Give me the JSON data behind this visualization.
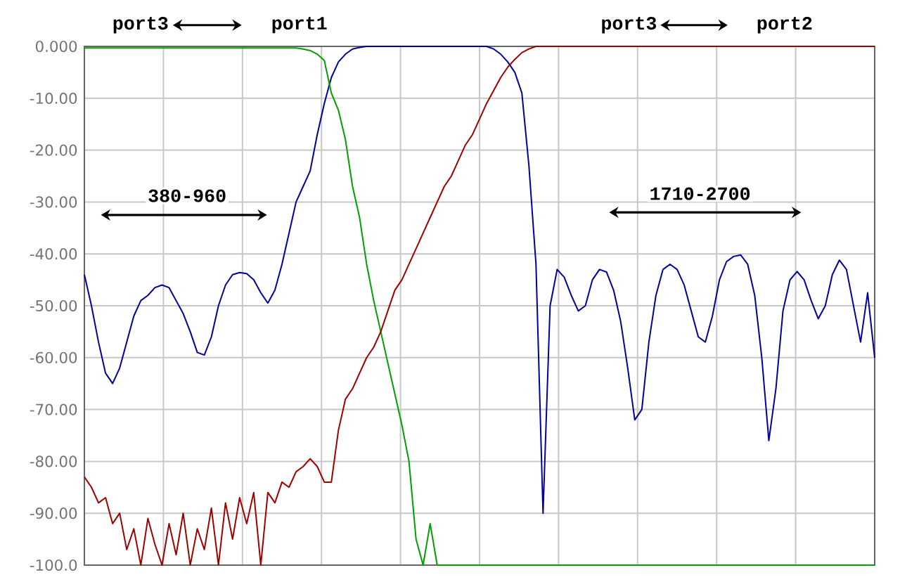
{
  "chart_data": {
    "type": "line",
    "categories": [
      null,
      null,
      null,
      null,
      null,
      null,
      null,
      null,
      null,
      null,
      null,
      null,
      null,
      null,
      null,
      null,
      null,
      null,
      null,
      null,
      null,
      null,
      null,
      null,
      null,
      null,
      null,
      null,
      null,
      null,
      null,
      null,
      null,
      null,
      null,
      null,
      null,
      null,
      null,
      null,
      null,
      null,
      null,
      null,
      null,
      null,
      null,
      null,
      null,
      null,
      null,
      null,
      null,
      null,
      null,
      null,
      null,
      null,
      null,
      null,
      null,
      null,
      null,
      null,
      null,
      null,
      null,
      null,
      null,
      null,
      null,
      null,
      null,
      null,
      null,
      null,
      null,
      null,
      null,
      null,
      null,
      null,
      null,
      null,
      null,
      null,
      null,
      null,
      null,
      null,
      null,
      null,
      null,
      null,
      null,
      null,
      null,
      null,
      null,
      null,
      null,
      null,
      null,
      null,
      null,
      null,
      null,
      null,
      null,
      null,
      null,
      null,
      null
    ],
    "series": [
      {
        "color": "#0000a0",
        "values": [
          -44,
          -50,
          -57,
          -63,
          -65,
          -62,
          -57,
          -52,
          -49,
          -48,
          -46.5,
          -46,
          -46.5,
          -49,
          -51.5,
          -55,
          -59,
          -59.5,
          -56,
          -50,
          -46,
          -44,
          -43.6,
          -43.8,
          -45,
          -47.5,
          -49.5,
          -47,
          -42,
          -36,
          -30,
          -27,
          -24,
          -17,
          -11,
          -6,
          -3,
          -1.5,
          -0.5,
          -0.2,
          0,
          0,
          0,
          0,
          0,
          0,
          0,
          0,
          0,
          0,
          0,
          0,
          0,
          0,
          0,
          0,
          0,
          0,
          -0.5,
          -1.5,
          -3,
          -5,
          -9,
          -23,
          -42,
          -90,
          -50,
          -43,
          -44.5,
          -48,
          -51,
          -50,
          -45,
          -43,
          -43.5,
          -47,
          -53,
          -62,
          -72,
          -70,
          -57,
          -48,
          -43,
          -42,
          -43,
          -46,
          -51,
          -56,
          -57,
          -52,
          -45,
          -41.5,
          -40.5,
          -40.2,
          -42,
          -48,
          -60,
          -76,
          -66,
          -51,
          -45,
          -43.4,
          -45,
          -49,
          -52.5,
          -50,
          -44,
          -41.2,
          -43,
          -50,
          -57,
          -47.5,
          -60
        ]
      },
      {
        "color": "#00a000",
        "values": [
          -0.3,
          -0.3,
          -0.3,
          -0.3,
          -0.3,
          -0.3,
          -0.3,
          -0.3,
          -0.3,
          -0.3,
          -0.3,
          -0.3,
          -0.3,
          -0.3,
          -0.3,
          -0.3,
          -0.3,
          -0.3,
          -0.3,
          -0.3,
          -0.3,
          -0.3,
          -0.3,
          -0.3,
          -0.3,
          -0.3,
          -0.3,
          -0.3,
          -0.3,
          -0.3,
          -0.3,
          -0.5,
          -0.8,
          -1.5,
          -2.7,
          -9,
          -12.3,
          -18,
          -27,
          -33,
          -42,
          -49,
          -55,
          -61,
          -67,
          -73,
          -80,
          -95,
          -100,
          -92,
          -100,
          -100,
          -100,
          -100,
          -100,
          -100,
          -100,
          -100,
          -100,
          -100,
          -100,
          -100,
          -100,
          -100,
          -100,
          -100,
          -100,
          -100,
          -100,
          -100,
          -100,
          -100,
          -100,
          -100,
          -100,
          -100,
          -100,
          -100,
          -100,
          -100,
          -100,
          -100,
          -100,
          -100,
          -100,
          -100,
          -100,
          -100,
          -100,
          -100,
          -100,
          -100,
          -100,
          -100,
          -100,
          -100,
          -100,
          -100,
          -100,
          -100,
          -100,
          -100,
          -100,
          -100,
          -100,
          -100,
          -100,
          -100,
          -100,
          -100,
          -100,
          -100,
          -100
        ]
      },
      {
        "color": "#a00000",
        "values": [
          -83,
          -85,
          -88,
          -87,
          -92,
          -90,
          -97,
          -93,
          -100,
          -91,
          -96,
          -100,
          -92,
          -98,
          -90,
          -100,
          -93,
          -97,
          -89,
          -100,
          -88,
          -95,
          -87,
          -92,
          -86,
          -100,
          -86,
          -88,
          -84,
          -85,
          -82,
          -81,
          -79.5,
          -81,
          -84,
          -84,
          -74,
          -68,
          -66,
          -63,
          -60,
          -58,
          -55,
          -51,
          -47,
          -45,
          -42,
          -39,
          -36,
          -33,
          -30,
          -27,
          -25,
          -22,
          -19,
          -17,
          -14,
          -11,
          -8.5,
          -6,
          -4,
          -2.5,
          -1.2,
          -0.5,
          0,
          0,
          0,
          0,
          0,
          0,
          0,
          0,
          0,
          0,
          0,
          0,
          0,
          0,
          0,
          0,
          0,
          0,
          0,
          0,
          0,
          0,
          0,
          0,
          0,
          0,
          0,
          0,
          0,
          0,
          0,
          0,
          0,
          0,
          0,
          0,
          0,
          0,
          0,
          0,
          0,
          0,
          0,
          0,
          0,
          0,
          0,
          0,
          0
        ]
      }
    ],
    "ylim": [
      -100,
      0
    ],
    "yticks": [
      {
        "value": 0,
        "label": "0.000"
      },
      {
        "value": -10,
        "label": "-10.00"
      },
      {
        "value": -20,
        "label": "-20.00"
      },
      {
        "value": -30,
        "label": "-30.00"
      },
      {
        "value": -40,
        "label": "-40.00"
      },
      {
        "value": -50,
        "label": "-50.00"
      },
      {
        "value": -60,
        "label": "-60.00"
      },
      {
        "value": -70,
        "label": "-70.00"
      },
      {
        "value": -80,
        "label": "-80.00"
      },
      {
        "value": -90,
        "label": "-90.00"
      },
      {
        "value": -100,
        "label": "-100.0"
      }
    ],
    "grid": true,
    "annotations": [
      "port3",
      "port1",
      "port3",
      "port2",
      "380-960",
      "1710-2700"
    ]
  }
}
